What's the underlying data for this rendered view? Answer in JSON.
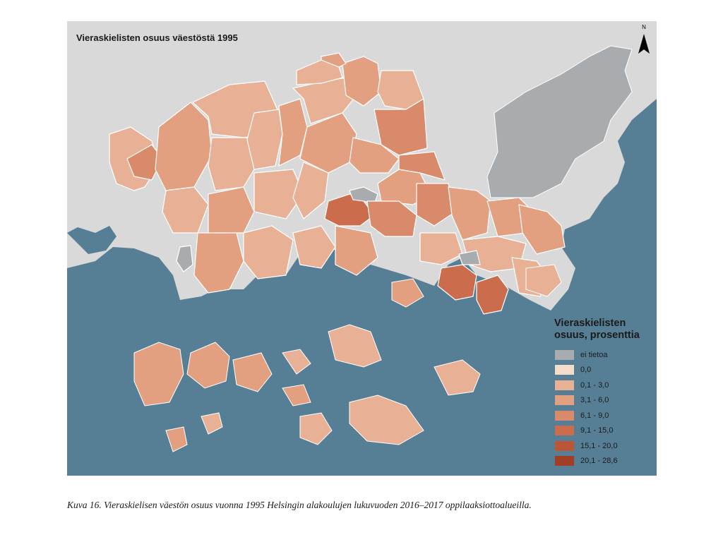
{
  "map": {
    "title": "Vieraskielisten osuus väestöstä 1995",
    "north_label": "N",
    "colors": {
      "background": "#d9d9d9",
      "sea": "#567f95",
      "boundary": "#ffffff"
    }
  },
  "legend": {
    "title_line1": "Vieraskielisten",
    "title_line2": "osuus, prosenttia",
    "classes": [
      {
        "label": "ei tietoa",
        "color": "#a9acaf"
      },
      {
        "label": "0,0",
        "color": "#f3dcca"
      },
      {
        "label": "0,1 - 3,0",
        "color": "#e8b195"
      },
      {
        "label": "3,1 - 6,0",
        "color": "#e2a080"
      },
      {
        "label": "6,1 - 9,0",
        "color": "#d88a6a"
      },
      {
        "label": "9,1 - 15,0",
        "color": "#cb6c4c"
      },
      {
        "label": "15,1 - 20,0",
        "color": "#bc5538"
      },
      {
        "label": "20,1 - 28,6",
        "color": "#a23e26"
      }
    ]
  },
  "caption": "Kuva 16. Vieraskielisen väestön osuus vuonna 1995 Helsingin alakoulujen lukuvuoden 2016–2017 oppilaaksiottoalueilla."
}
